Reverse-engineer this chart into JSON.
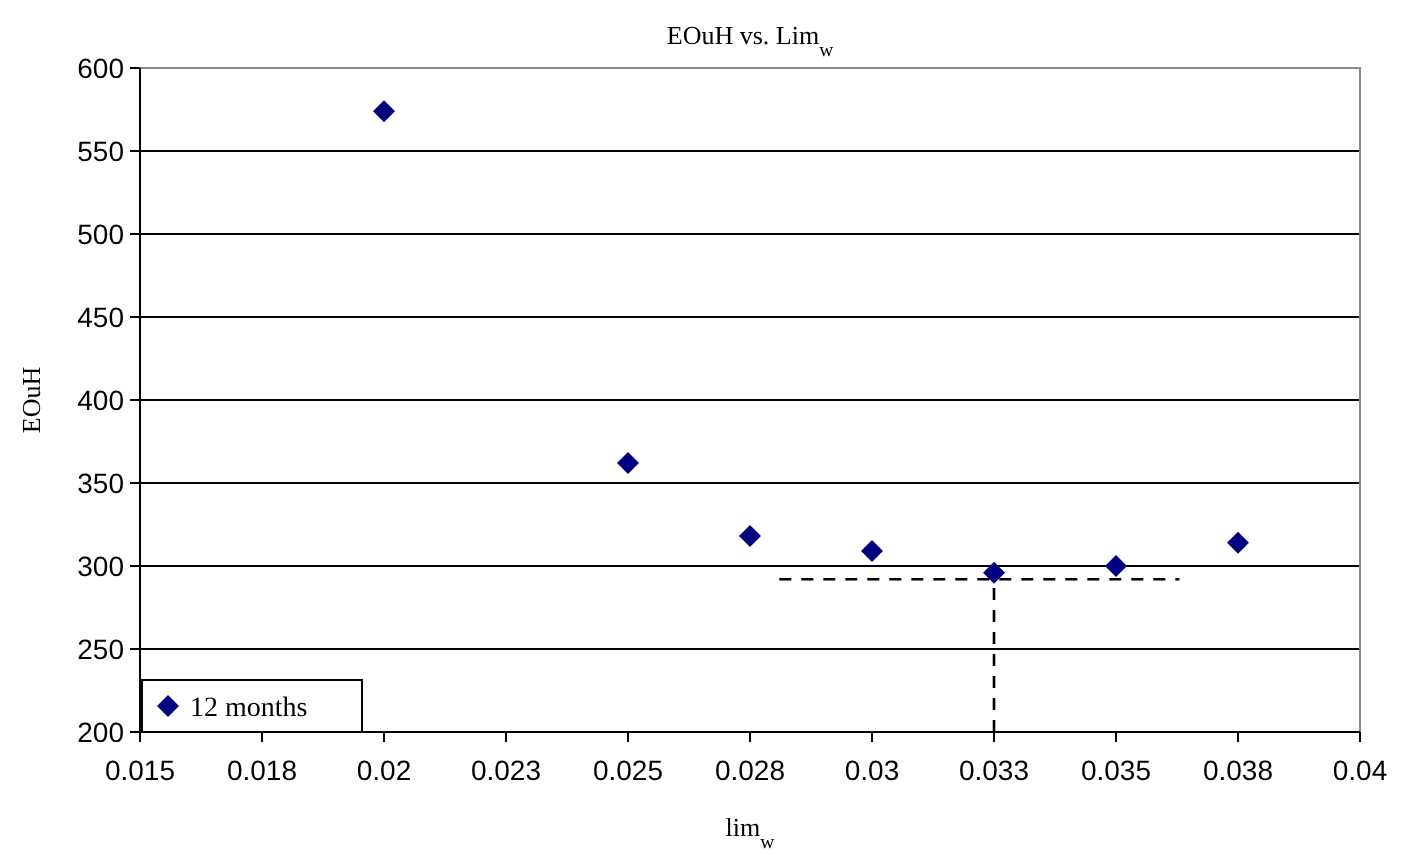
{
  "chart_data": {
    "type": "scatter",
    "title": "EOuH vs. Lim$_{w}$",
    "xlabel": "lim$_{w}$",
    "ylabel": "EOuH",
    "xlim": [
      0.015,
      0.04
    ],
    "xticks": [
      0.015,
      {
        "value": 0.0175,
        "label": "0.018"
      },
      0.02,
      {
        "value": 0.0225,
        "label": "0.023"
      },
      0.025,
      {
        "value": 0.0275,
        "label": "0.028"
      },
      0.03,
      {
        "value": 0.0325,
        "label": "0.033"
      },
      0.035,
      {
        "value": 0.0375,
        "label": "0.038"
      },
      0.04
    ],
    "ylim": [
      200,
      600
    ],
    "yticks": [
      200,
      250,
      300,
      350,
      400,
      450,
      500,
      550,
      600
    ],
    "grid": "y",
    "legend": "bottom left",
    "marker": "diamond",
    "series": [
      {
        "name": "12 months",
        "color": "#000080",
        "x": [
          0.02,
          0.025,
          0.0275,
          0.03,
          0.0325,
          0.035,
          0.0375
        ],
        "values": [
          574,
          362,
          318,
          309,
          296,
          300,
          314
        ]
      },
      {
        "type": "line",
        "color": "#000000",
        "line_style": "dashed",
        "marker": "none",
        "x": [
          0.0281,
          0.0363
        ],
        "values": [
          292,
          292
        ]
      },
      {
        "type": "line",
        "color": "#000000",
        "line_style": "dashed",
        "marker": "none",
        "x": [
          0.0325,
          0.0325
        ],
        "values": [
          200,
          292
        ]
      }
    ]
  }
}
